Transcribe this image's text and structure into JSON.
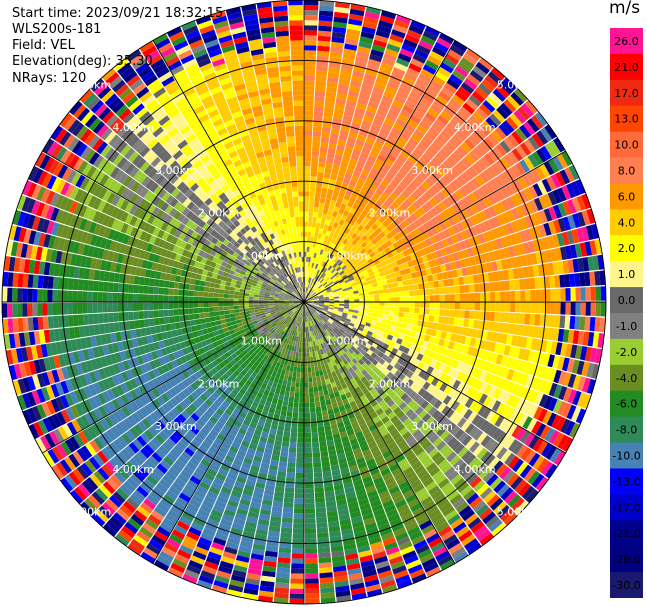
{
  "header": {
    "start_time": "Start time: 2023/09/21 18:32:15",
    "site": "WLS200s-181",
    "field": "Field: VEL",
    "elevation": "Elevation(deg): 35.30",
    "nrays": "NRays: 120"
  },
  "colorbar": {
    "unit": "m/s",
    "bins": [
      {
        "label": "26.0",
        "color": "#ff1493"
      },
      {
        "label": "21.0",
        "color": "#ff0000"
      },
      {
        "label": "17.0",
        "color": "#f02a12"
      },
      {
        "label": "13.0",
        "color": "#ff4500"
      },
      {
        "label": "10.0",
        "color": "#ff6a3a"
      },
      {
        "label": "8.0",
        "color": "#ff7f50"
      },
      {
        "label": "6.0",
        "color": "#ff9900"
      },
      {
        "label": "4.0",
        "color": "#ffcc00"
      },
      {
        "label": "2.0",
        "color": "#ffff00"
      },
      {
        "label": "1.0",
        "color": "#fff58a"
      },
      {
        "label": "0.0",
        "color": "#696969"
      },
      {
        "label": "-1.0",
        "color": "#808080"
      },
      {
        "label": "-2.0",
        "color": "#9acd32"
      },
      {
        "label": "-4.0",
        "color": "#6b8e23"
      },
      {
        "label": "-6.0",
        "color": "#228b22"
      },
      {
        "label": "-8.0",
        "color": "#2e8b57"
      },
      {
        "label": "-10.0",
        "color": "#4682b4"
      },
      {
        "label": "-13.0",
        "color": "#0000ff"
      },
      {
        "label": "-17.0",
        "color": "#0000cd"
      },
      {
        "label": "-21.0",
        "color": "#00008b"
      },
      {
        "label": "-26.0",
        "color": "#000080"
      },
      {
        "label": "-30.0",
        "color": "#191970"
      }
    ]
  },
  "range_rings": [
    {
      "label": "1.00km",
      "km": 1
    },
    {
      "label": "2.00km",
      "km": 2
    },
    {
      "label": "3.00km",
      "km": 3
    },
    {
      "label": "4.00km",
      "km": 4
    },
    {
      "label": "5.00km",
      "km": 5
    }
  ],
  "chart_data": {
    "type": "ppi",
    "field": "VEL",
    "units": "m/s",
    "nrays": 120,
    "max_range_km": 5.0,
    "range_gates": 60,
    "velocity_pattern": {
      "toward_direction_deg": 40,
      "max_speed_mps": 9.0,
      "near_range_speed_mps": 1.5,
      "noise_starts_km": 4.1
    }
  }
}
